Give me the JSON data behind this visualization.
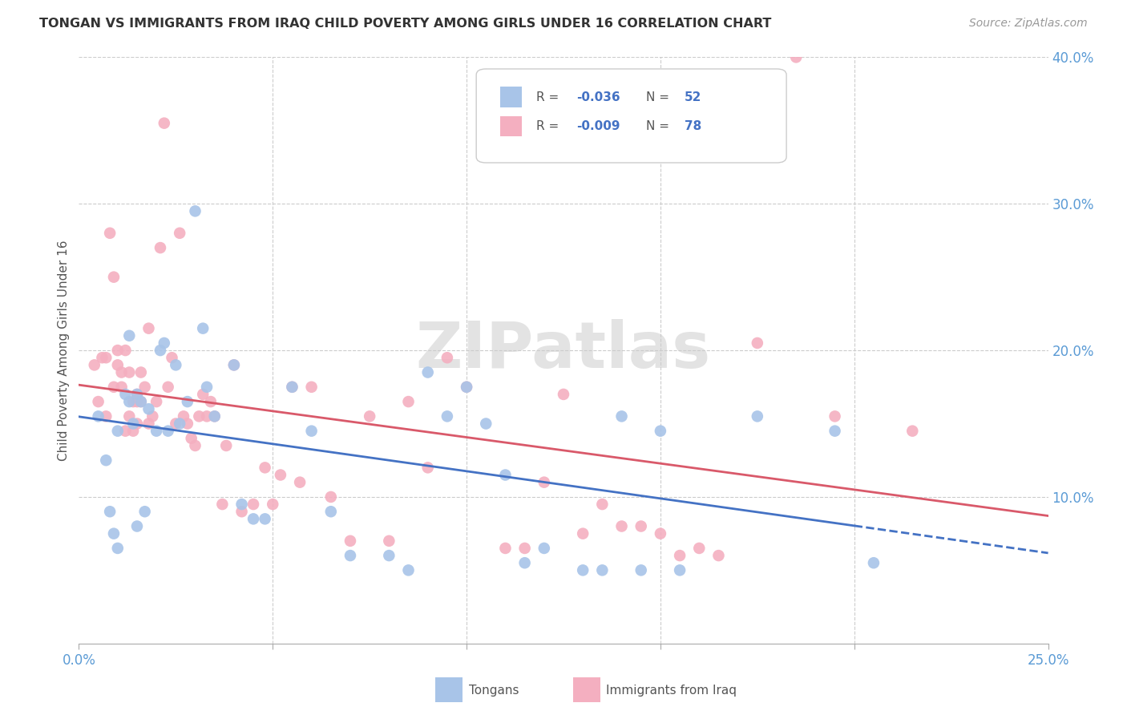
{
  "title": "TONGAN VS IMMIGRANTS FROM IRAQ CHILD POVERTY AMONG GIRLS UNDER 16 CORRELATION CHART",
  "source": "Source: ZipAtlas.com",
  "ylabel": "Child Poverty Among Girls Under 16",
  "xlim": [
    0,
    0.25
  ],
  "ylim": [
    0,
    0.4
  ],
  "xticks": [
    0.0,
    0.05,
    0.1,
    0.15,
    0.2,
    0.25
  ],
  "xtick_labels": [
    "0.0%",
    "",
    "",
    "",
    "",
    "25.0%"
  ],
  "yticks_right": [
    0.1,
    0.2,
    0.3,
    0.4
  ],
  "ytick_labels_right": [
    "10.0%",
    "20.0%",
    "30.0%",
    "40.0%"
  ],
  "legend_r_tongan": "-0.036",
  "legend_n_tongan": "52",
  "legend_r_iraq": "-0.009",
  "legend_n_iraq": "78",
  "tongan_color": "#a8c4e8",
  "iraq_color": "#f4afc0",
  "tongan_line_color": "#4472c4",
  "iraq_line_color": "#d9596a",
  "watermark": "ZIPatlas",
  "tongan_scatter_x": [
    0.005,
    0.007,
    0.008,
    0.009,
    0.01,
    0.01,
    0.012,
    0.013,
    0.013,
    0.014,
    0.015,
    0.015,
    0.016,
    0.017,
    0.018,
    0.02,
    0.021,
    0.022,
    0.023,
    0.025,
    0.026,
    0.028,
    0.03,
    0.032,
    0.033,
    0.035,
    0.04,
    0.042,
    0.045,
    0.048,
    0.055,
    0.06,
    0.065,
    0.07,
    0.08,
    0.085,
    0.09,
    0.095,
    0.1,
    0.105,
    0.11,
    0.115,
    0.12,
    0.13,
    0.135,
    0.14,
    0.145,
    0.15,
    0.155,
    0.175,
    0.195,
    0.205
  ],
  "tongan_scatter_y": [
    0.155,
    0.125,
    0.09,
    0.075,
    0.065,
    0.145,
    0.17,
    0.21,
    0.165,
    0.15,
    0.08,
    0.17,
    0.165,
    0.09,
    0.16,
    0.145,
    0.2,
    0.205,
    0.145,
    0.19,
    0.15,
    0.165,
    0.295,
    0.215,
    0.175,
    0.155,
    0.19,
    0.095,
    0.085,
    0.085,
    0.175,
    0.145,
    0.09,
    0.06,
    0.06,
    0.05,
    0.185,
    0.155,
    0.175,
    0.15,
    0.115,
    0.055,
    0.065,
    0.05,
    0.05,
    0.155,
    0.05,
    0.145,
    0.05,
    0.155,
    0.145,
    0.055
  ],
  "iraq_scatter_x": [
    0.004,
    0.005,
    0.006,
    0.007,
    0.007,
    0.008,
    0.009,
    0.009,
    0.01,
    0.01,
    0.011,
    0.011,
    0.012,
    0.012,
    0.013,
    0.013,
    0.014,
    0.014,
    0.015,
    0.015,
    0.015,
    0.016,
    0.016,
    0.017,
    0.018,
    0.018,
    0.019,
    0.02,
    0.021,
    0.022,
    0.023,
    0.024,
    0.025,
    0.026,
    0.027,
    0.028,
    0.029,
    0.03,
    0.031,
    0.032,
    0.033,
    0.034,
    0.035,
    0.037,
    0.038,
    0.04,
    0.042,
    0.045,
    0.048,
    0.05,
    0.052,
    0.055,
    0.057,
    0.06,
    0.065,
    0.07,
    0.075,
    0.08,
    0.085,
    0.09,
    0.095,
    0.1,
    0.11,
    0.115,
    0.12,
    0.125,
    0.13,
    0.135,
    0.14,
    0.145,
    0.15,
    0.155,
    0.16,
    0.165,
    0.175,
    0.185,
    0.195,
    0.215
  ],
  "iraq_scatter_y": [
    0.19,
    0.165,
    0.195,
    0.195,
    0.155,
    0.28,
    0.25,
    0.175,
    0.19,
    0.2,
    0.175,
    0.185,
    0.145,
    0.2,
    0.185,
    0.155,
    0.145,
    0.165,
    0.165,
    0.15,
    0.17,
    0.165,
    0.185,
    0.175,
    0.15,
    0.215,
    0.155,
    0.165,
    0.27,
    0.355,
    0.175,
    0.195,
    0.15,
    0.28,
    0.155,
    0.15,
    0.14,
    0.135,
    0.155,
    0.17,
    0.155,
    0.165,
    0.155,
    0.095,
    0.135,
    0.19,
    0.09,
    0.095,
    0.12,
    0.095,
    0.115,
    0.175,
    0.11,
    0.175,
    0.1,
    0.07,
    0.155,
    0.07,
    0.165,
    0.12,
    0.195,
    0.175,
    0.065,
    0.065,
    0.11,
    0.17,
    0.075,
    0.095,
    0.08,
    0.08,
    0.075,
    0.06,
    0.065,
    0.06,
    0.205,
    0.4,
    0.155,
    0.145
  ]
}
